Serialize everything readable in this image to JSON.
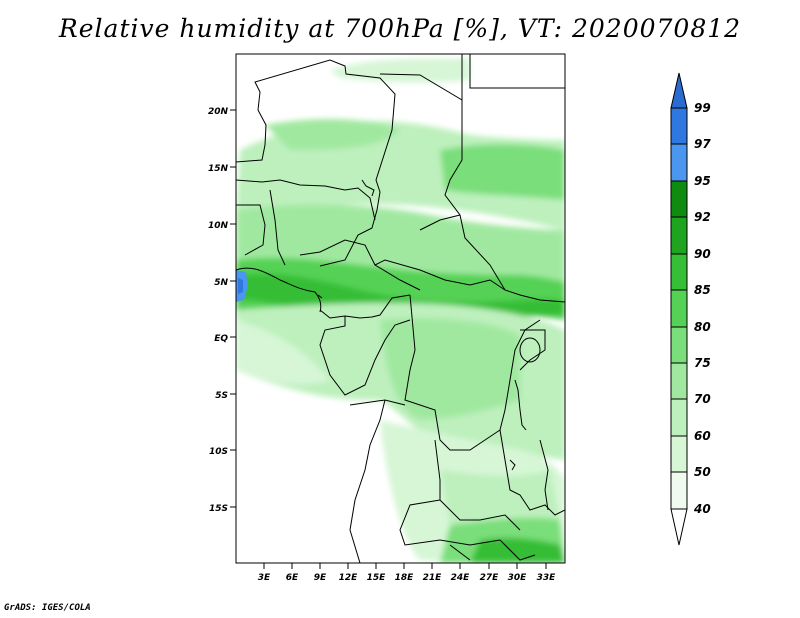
{
  "title": "Relative humidity at 700hPa [%], VT: 2020070812",
  "credit": "GrADS: IGES/COLA",
  "map": {
    "lat_labels": [
      "20N",
      "15N",
      "10N",
      "5N",
      "EQ",
      "5S",
      "10S",
      "15S"
    ],
    "lon_labels": [
      "3E",
      "6E",
      "9E",
      "12E",
      "15E",
      "18E",
      "21E",
      "24E",
      "27E",
      "30E",
      "33E"
    ]
  },
  "colorbar": {
    "labels": [
      "99",
      "97",
      "95",
      "92",
      "90",
      "85",
      "80",
      "75",
      "70",
      "60",
      "50",
      "40"
    ],
    "colors": {
      "above_99": "#2a6bd0",
      "97_99": "#2f78e0",
      "95_97": "#4b96ee",
      "92_95": "#0f8c0f",
      "90_92": "#1ea41e",
      "85_90": "#36be36",
      "80_85": "#55d255",
      "75_80": "#7ade7a",
      "70_75": "#a0e8a0",
      "60_70": "#bdf0bd",
      "50_60": "#d6f6d6",
      "40_50": "#eefbee",
      "below_40": "#ffffff"
    }
  }
}
